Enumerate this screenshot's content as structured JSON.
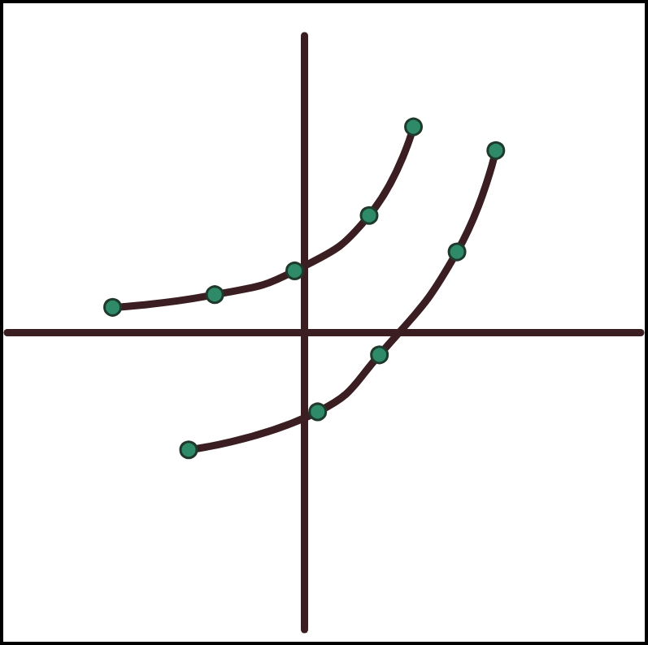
{
  "chart_data": {
    "type": "line",
    "series": [
      {
        "color": "#3b1e22",
        "marker": "circle",
        "line_style": "solid",
        "x": [
          -4.84,
          -2.26,
          -0.24,
          1.64,
          2.76
        ],
        "values": [
          0.64,
          0.96,
          1.56,
          2.96,
          5.2
        ]
      },
      {
        "color": "#3b1e22",
        "marker": "circle",
        "line_style": "solid",
        "x": [
          -2.92,
          0.34,
          1.9,
          3.86,
          4.84
        ],
        "values": [
          -2.96,
          -2.0,
          -0.56,
          2.04,
          4.6
        ]
      }
    ],
    "xlim": [
      -7.5,
      8.5
    ],
    "ylim": [
      -7.5,
      7.5
    ],
    "grid": false,
    "tick_labels": false
  }
}
